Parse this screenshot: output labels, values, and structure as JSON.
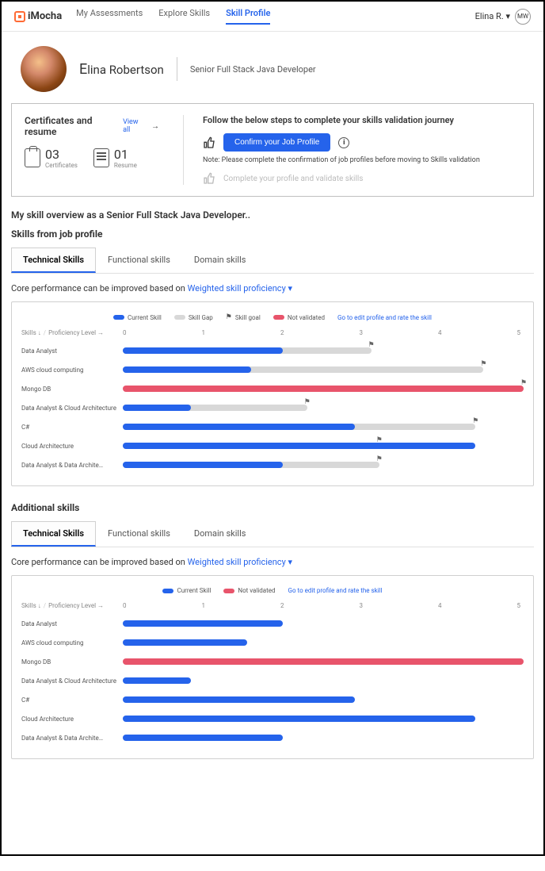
{
  "brand": "iMocha",
  "nav": {
    "assessments": "My Assessments",
    "explore": "Explore Skills",
    "profile": "Skill Profile"
  },
  "user": {
    "name": "Elina R. ▾",
    "initials": "MW"
  },
  "profile": {
    "name_first": "E",
    "name_rest": "lina Robertson",
    "title": "Senior Full Stack Java Developer"
  },
  "cert": {
    "title": "Certificates and resume",
    "view_all": "View all",
    "cert_num": "03",
    "cert_label": "Certificates",
    "resume_num": "01",
    "resume_label": "Resume"
  },
  "journey": {
    "title": "Follow the below steps to complete your skills validation journey",
    "confirm_btn": "Confirm your Job Profile",
    "note": "Note: Please complete the confirmation of job profiles before moving to Skills validation",
    "step2": "Complete your profile and validate skills"
  },
  "overview": "My skill overview as a Senior  Full Stack Java Developer..",
  "skills_section": "Skills  from job profile",
  "tabs": {
    "tech": "Technical Skills",
    "func": "Functional skills",
    "domain": "Domain skills"
  },
  "perf_prefix": "Core performance can be improved based on ",
  "perf_link": "Weighted skill proficiency ▾",
  "legend": {
    "current": "Current Skill",
    "gap": "Skill Gap",
    "goal": "Skill goal",
    "notval": "Not validated",
    "edit_link": "Go to edit profile and rate the skill"
  },
  "colors": {
    "current": "#2563eb",
    "gap": "#d8d8d8",
    "notval": "#e8546b"
  },
  "axis_header": {
    "skills": "Skills ↓",
    "prof": "Proficiency Level →"
  },
  "axis_ticks": [
    "0",
    "1",
    "2",
    "3",
    "4",
    "5"
  ],
  "chart1": {
    "max": 5,
    "rows": [
      {
        "label": "Data Analyst",
        "current": 2.0,
        "gap": 3.1,
        "flag": 3.1
      },
      {
        "label": "AWS cloud computing",
        "current": 1.6,
        "gap": 4.5,
        "flag": 4.5
      },
      {
        "label": "Mongo DB",
        "notval": 5.0,
        "flag": 5.0
      },
      {
        "label": "Data Analyst & Cloud Architecture",
        "current": 0.85,
        "gap": 2.3,
        "flag": 2.3
      },
      {
        "label": "C#",
        "current": 2.9,
        "gap": 4.4,
        "flag": 4.4
      },
      {
        "label": "Cloud Architecture",
        "current": 4.4,
        "gap": 3.2,
        "flag": 3.2
      },
      {
        "label": "Data Analyst & Data Archite…",
        "current": 2.0,
        "gap": 3.2,
        "flag": 3.2
      }
    ]
  },
  "additional": "Additional skills",
  "chart2": {
    "max": 5,
    "rows": [
      {
        "label": "Data Analyst",
        "current": 2.0
      },
      {
        "label": "AWS cloud computing",
        "current": 1.55
      },
      {
        "label": "Mongo DB",
        "notval": 5.0
      },
      {
        "label": "Data Analyst & Cloud Architecture",
        "current": 0.85
      },
      {
        "label": "C#",
        "current": 2.9
      },
      {
        "label": "Cloud Architecture",
        "current": 4.4
      },
      {
        "label": "Data Analyst & Data Archite…",
        "current": 2.0
      }
    ]
  }
}
